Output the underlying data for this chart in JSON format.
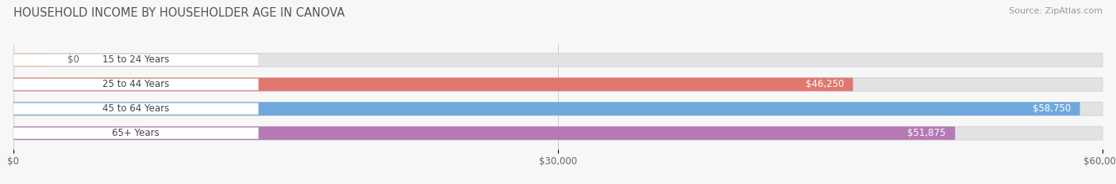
{
  "title": "HOUSEHOLD INCOME BY HOUSEHOLDER AGE IN CANOVA",
  "source": "Source: ZipAtlas.com",
  "categories": [
    "15 to 24 Years",
    "25 to 44 Years",
    "45 to 64 Years",
    "65+ Years"
  ],
  "values": [
    0,
    46250,
    58750,
    51875
  ],
  "bar_colors": [
    "#f0c8a0",
    "#e07870",
    "#6fa8dc",
    "#b57ab5"
  ],
  "value_labels": [
    "$0",
    "$46,250",
    "$58,750",
    "$51,875"
  ],
  "value_label_colors": [
    "#666666",
    "#ffffff",
    "#ffffff",
    "#ffffff"
  ],
  "xlim": [
    0,
    60000
  ],
  "xticks": [
    0,
    30000,
    60000
  ],
  "xticklabels": [
    "$0",
    "$30,000",
    "$60,000"
  ],
  "background_color": "#f7f7f7",
  "bar_bg_color": "#e2e2e2",
  "label_bg_color": "#ffffff",
  "title_fontsize": 10.5,
  "source_fontsize": 8,
  "label_fontsize": 8.5,
  "value_fontsize": 8.5,
  "tick_fontsize": 8.5,
  "bar_height": 0.55,
  "figsize": [
    14.06,
    2.33
  ],
  "dpi": 100
}
